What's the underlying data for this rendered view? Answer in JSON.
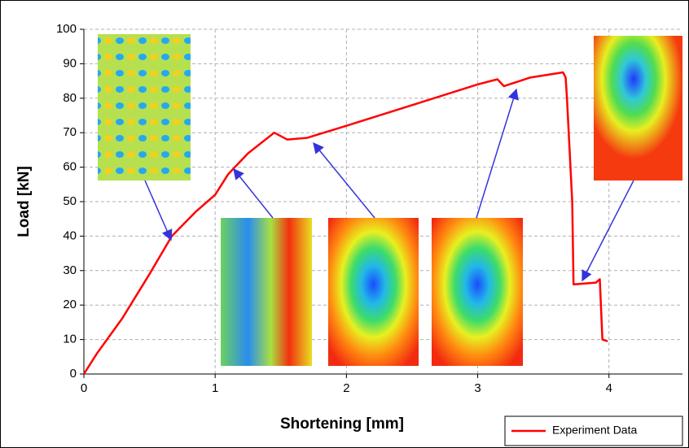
{
  "chart_data": {
    "type": "line",
    "xlabel": "Shortening [mm]",
    "ylabel": "Load [kN]",
    "x": [
      0,
      0.1,
      0.29,
      0.5,
      0.67,
      0.85,
      1,
      1.1,
      1.25,
      1.45,
      1.5,
      1.55,
      1.7,
      2,
      2.5,
      3,
      3.15,
      3.2,
      3.4,
      3.65,
      3.67,
      3.68,
      3.72,
      3.73,
      3.9,
      3.93,
      3.95,
      3.99
    ],
    "series": [
      {
        "name": "Experiment Data",
        "color": "#ff0000",
        "values": [
          0,
          6,
          16,
          29,
          40,
          47,
          52,
          58,
          64,
          70,
          69,
          68,
          68.5,
          72,
          78,
          84,
          85.5,
          83.5,
          86,
          87.5,
          86,
          80,
          50,
          26,
          26.5,
          27.5,
          10,
          9.5
        ]
      }
    ],
    "xlim": [
      0,
      4.56
    ],
    "ylim": [
      0,
      100
    ],
    "xticks": [
      0,
      1,
      2,
      3,
      4
    ],
    "yticks": [
      0,
      10,
      20,
      30,
      40,
      50,
      60,
      70,
      80,
      90,
      100
    ],
    "grid": true,
    "legend": "bottom-right"
  }
}
